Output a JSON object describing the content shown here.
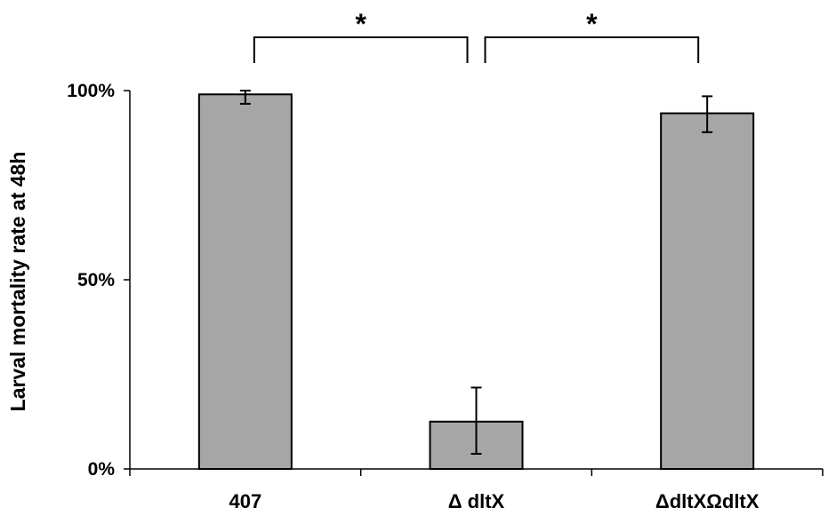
{
  "chart_data": {
    "type": "bar",
    "title": "",
    "xlabel": "",
    "ylabel": "Larval mortality rate at 48h",
    "ylim": [
      0,
      100
    ],
    "yticks": [
      {
        "value": 0,
        "label": "0%"
      },
      {
        "value": 50,
        "label": "50%"
      },
      {
        "value": 100,
        "label": "100%"
      }
    ],
    "categories": [
      "407",
      "Δ dltX",
      "ΔdltXΩdltX"
    ],
    "values": [
      99,
      12.5,
      94
    ],
    "error_low": [
      96.5,
      4,
      89
    ],
    "error_high": [
      100,
      21.5,
      98.5
    ],
    "significance": [
      {
        "from": 0,
        "to": 1,
        "label": "*"
      },
      {
        "from": 1,
        "to": 2,
        "label": "*"
      }
    ],
    "grid": false,
    "colors": {
      "bar": "#a6a6a6",
      "stroke": "#000000"
    }
  }
}
